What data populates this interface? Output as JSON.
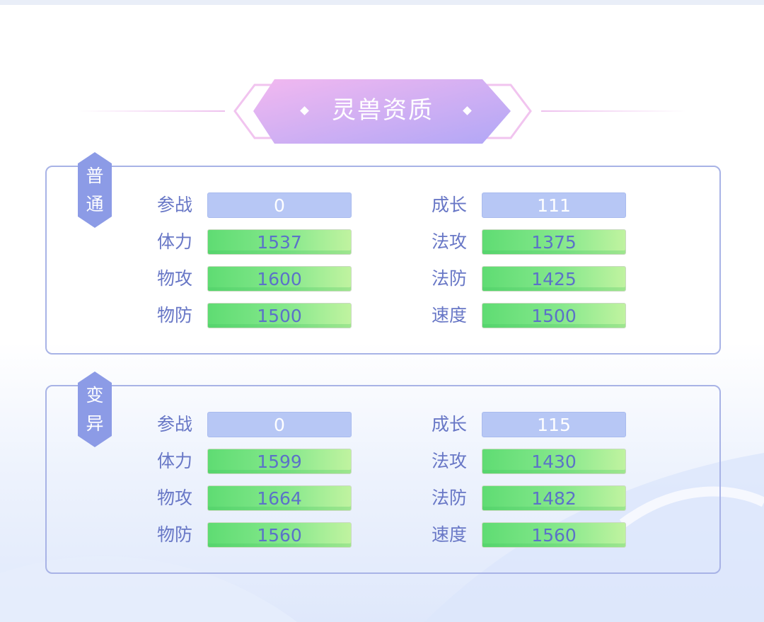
{
  "title": "灵兽资质",
  "colors": {
    "accent": "#8c9be6",
    "title_gradient_start": "#f2b8f0",
    "title_gradient_end": "#b2a8f5",
    "bar_green": "#6ee07c",
    "bar_blue": "#b7c7f5"
  },
  "sections": [
    {
      "badge": "普通",
      "left": [
        {
          "label": "参战",
          "value": "0",
          "kind": "blue"
        },
        {
          "label": "体力",
          "value": "1537",
          "kind": "green"
        },
        {
          "label": "物攻",
          "value": "1600",
          "kind": "green"
        },
        {
          "label": "物防",
          "value": "1500",
          "kind": "green"
        }
      ],
      "right": [
        {
          "label": "成长",
          "value": "111",
          "kind": "blue"
        },
        {
          "label": "法攻",
          "value": "1375",
          "kind": "green"
        },
        {
          "label": "法防",
          "value": "1425",
          "kind": "green"
        },
        {
          "label": "速度",
          "value": "1500",
          "kind": "green"
        }
      ]
    },
    {
      "badge": "变异",
      "left": [
        {
          "label": "参战",
          "value": "0",
          "kind": "blue"
        },
        {
          "label": "体力",
          "value": "1599",
          "kind": "green"
        },
        {
          "label": "物攻",
          "value": "1664",
          "kind": "green"
        },
        {
          "label": "物防",
          "value": "1560",
          "kind": "green"
        }
      ],
      "right": [
        {
          "label": "成长",
          "value": "115",
          "kind": "blue"
        },
        {
          "label": "法攻",
          "value": "1430",
          "kind": "green"
        },
        {
          "label": "法防",
          "value": "1482",
          "kind": "green"
        },
        {
          "label": "速度",
          "value": "1560",
          "kind": "green"
        }
      ]
    }
  ]
}
